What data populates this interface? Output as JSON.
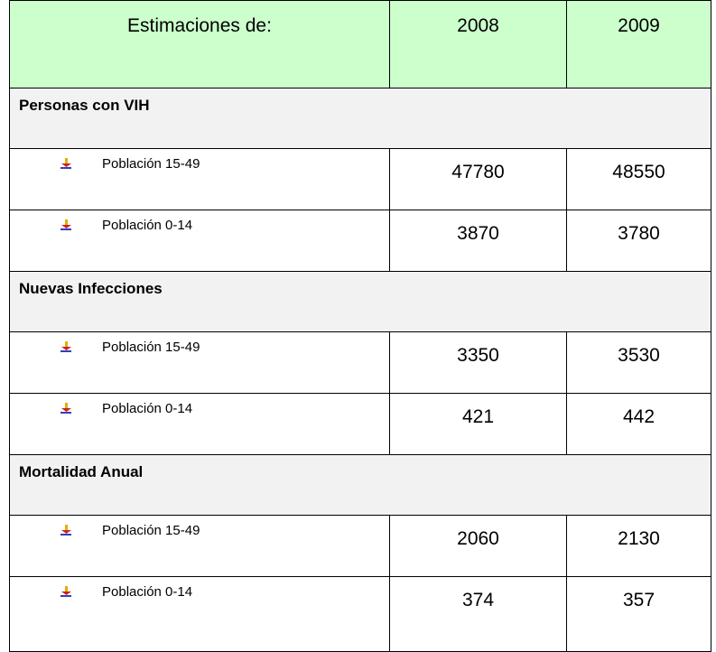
{
  "table": {
    "header": [
      "Estimaciones de:",
      "2008",
      "2009"
    ],
    "sections": [
      {
        "title": "Personas con VIH",
        "rows": [
          {
            "label": "Población 15-49",
            "values": [
              47780,
              48550
            ]
          },
          {
            "label": "Población 0-14",
            "values": [
              3870,
              3780
            ]
          }
        ]
      },
      {
        "title": "Nuevas Infecciones",
        "rows": [
          {
            "label": "Población 15-49",
            "values": [
              3350,
              3530
            ]
          },
          {
            "label": "Población 0-14",
            "values": [
              421,
              442
            ]
          }
        ]
      },
      {
        "title": "Mortalidad Anual",
        "rows": [
          {
            "label": "Población 15-49",
            "values": [
              2060,
              2130
            ]
          },
          {
            "label": "Población 0-14",
            "values": [
              374,
              357
            ]
          }
        ]
      }
    ]
  }
}
